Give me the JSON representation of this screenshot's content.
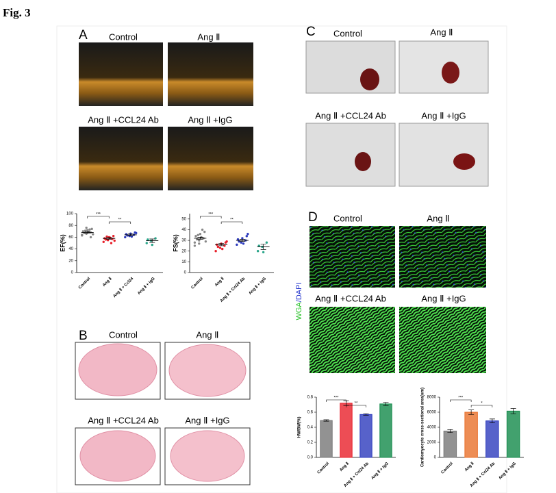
{
  "header": {
    "title": "Fig. 3"
  },
  "panels": {
    "A": {
      "letter": "A",
      "labels": [
        "Control",
        "Ang Ⅱ",
        "Ang Ⅱ +CCL24 Ab",
        "Ang Ⅱ +IgG"
      ]
    },
    "B": {
      "letter": "B",
      "labels": [
        "Control",
        "Ang Ⅱ",
        "Ang Ⅱ +CCL24 Ab",
        "Ang Ⅱ +IgG"
      ]
    },
    "C": {
      "letter": "C",
      "labels": [
        "Control",
        "Ang Ⅱ",
        "Ang Ⅱ +CCL24 Ab",
        "Ang Ⅱ +IgG"
      ]
    },
    "D": {
      "letter": "D",
      "labels": [
        "Control",
        "Ang Ⅱ",
        "Ang Ⅱ +CCL24 Ab",
        "Ang Ⅱ +IgG"
      ],
      "stain": [
        "WGA",
        "/DAPI"
      ]
    }
  },
  "chart_data": [
    {
      "type": "dot",
      "ylabel": "EF(%)",
      "categories": [
        "Control",
        "Ang Ⅱ",
        "Ang Ⅱ + Ccl24",
        "Ang Ⅱ + IgG"
      ],
      "colors": [
        "#888888",
        "#e8202a",
        "#2d3bbd",
        "#2aa58a"
      ],
      "values": [
        68,
        58,
        64,
        54
      ],
      "errors": [
        1.5,
        1.5,
        1.5,
        3
      ],
      "points": [
        [
          64,
          66,
          68,
          70,
          72,
          74,
          67,
          69,
          65,
          71,
          73,
          63,
          76,
          60
        ],
        [
          52,
          55,
          57,
          58,
          60,
          62,
          56,
          59,
          54,
          61,
          50
        ],
        [
          60,
          62,
          64,
          65,
          66,
          68,
          63,
          61,
          67
        ],
        [
          50,
          54,
          58,
          56,
          47
        ]
      ],
      "ylim": [
        0,
        100
      ],
      "yticks": [
        0,
        20,
        40,
        60,
        80,
        100
      ],
      "annotations": [
        "***",
        "**"
      ]
    },
    {
      "type": "dot",
      "ylabel": "FS(%)",
      "categories": [
        "Control",
        "Ang Ⅱ",
        "Ang Ⅱ + Ccl24 Ab",
        "Ang Ⅱ + IgG"
      ],
      "colors": [
        "#888888",
        "#e8202a",
        "#2d3bbd",
        "#2aa58a"
      ],
      "values": [
        32,
        26,
        30,
        24
      ],
      "errors": [
        1,
        1,
        1,
        2.5
      ],
      "points": [
        [
          28,
          30,
          32,
          34,
          36,
          38,
          31,
          33,
          29,
          35,
          40,
          25,
          27
        ],
        [
          20,
          23,
          25,
          26,
          27,
          28,
          24,
          22,
          29
        ],
        [
          26,
          28,
          30,
          31,
          32,
          34,
          29,
          27,
          36
        ],
        [
          20,
          24,
          28,
          25,
          19
        ]
      ],
      "ylim": [
        0,
        55
      ],
      "yticks": [
        0,
        10,
        20,
        30,
        40,
        50
      ],
      "annotations": [
        "***",
        "**"
      ]
    },
    {
      "type": "bar",
      "ylabel": "HW/BW(%)",
      "categories": [
        "Control",
        "Ang Ⅱ",
        "Ang Ⅱ + Ccl24 Ab",
        "Ang Ⅱ + IgG"
      ],
      "colors": [
        "#777777",
        "#e8202a",
        "#2d3bbd",
        "#138a4a"
      ],
      "values": [
        0.49,
        0.72,
        0.57,
        0.71
      ],
      "errors": [
        0.01,
        0.03,
        0.01,
        0.02
      ],
      "ylim": [
        0,
        0.8
      ],
      "yticks": [
        {
          "value": 0,
          "label": "0.0"
        },
        0.2,
        0.4,
        0.6,
        0.8
      ],
      "annotations": [
        "***",
        "**"
      ]
    },
    {
      "type": "bar",
      "ylabel": "Cardiomyocyte cross-sectional area(um)",
      "categories": [
        "Control",
        "Ang Ⅱ",
        "Ang Ⅱ + Ccl24 Ab",
        "Ang Ⅱ + IgG"
      ],
      "colors": [
        "#777777",
        "#e8702a",
        "#2d3bbd",
        "#138a4a"
      ],
      "values": [
        3500,
        6000,
        4850,
        6150
      ],
      "errors": [
        200,
        300,
        250,
        350
      ],
      "ylim": [
        0,
        8000
      ],
      "yticks": [
        0,
        2000,
        4000,
        6000,
        8000
      ],
      "annotations": [
        "***",
        "*"
      ]
    }
  ]
}
